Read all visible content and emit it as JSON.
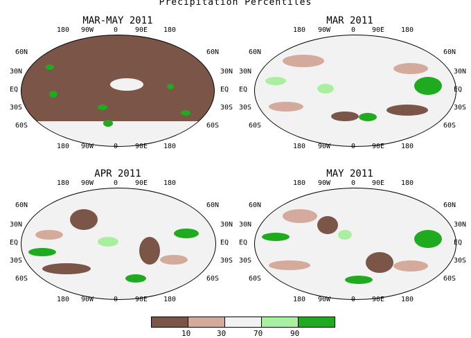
{
  "title": "Precipitation Percentiles",
  "panels": [
    {
      "title": "MAR-MAY 2011"
    },
    {
      "title": "MAR 2011"
    },
    {
      "title": "APR 2011"
    },
    {
      "title": "MAY 2011"
    }
  ],
  "axes": {
    "lon_labels": [
      "180",
      "90W",
      "0",
      "90E",
      "180"
    ],
    "lat_labels_left": [
      "60N",
      "30N",
      "EQ",
      "30S",
      "60S"
    ],
    "lat_labels_right": [
      "60N",
      "30N",
      "EQ",
      "30S",
      "60S"
    ]
  },
  "legend": {
    "colors": [
      "#7a5548",
      "#d4aa9c",
      "#f2f2f2",
      "#a8f0a0",
      "#1faa1f"
    ],
    "ticks": [
      "10",
      "30",
      "70",
      "90"
    ]
  }
}
